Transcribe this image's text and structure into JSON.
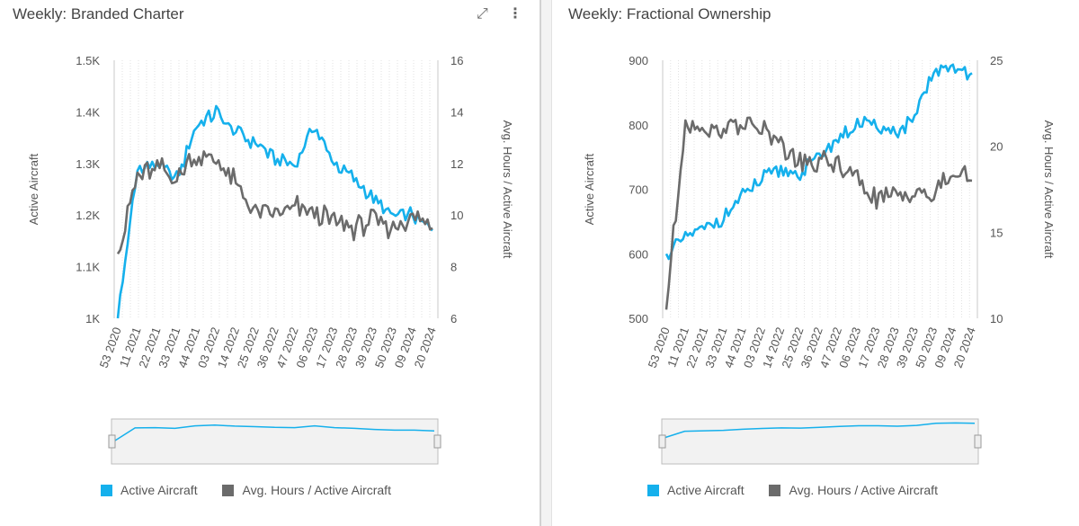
{
  "toolbar": {
    "expand_icon": "expand-arrows-icon",
    "menu_icon": "vertical-dots-icon"
  },
  "colors": {
    "active_aircraft": "#15b0ec",
    "avg_hours": "#6b6b6b"
  },
  "chart_data": [
    {
      "type": "line",
      "title": "Weekly: Branded Charter",
      "xlabel": "",
      "ylabel": "Active Aircraft",
      "y2label": "Avg. Hours / Active Aircraft",
      "ylim": [
        1000,
        1500
      ],
      "y2lim": [
        6,
        16
      ],
      "yticks": [
        "1K",
        "1.1K",
        "1.2K",
        "1.3K",
        "1.4K",
        "1.5K"
      ],
      "y2ticks": [
        "6",
        "8",
        "10",
        "12",
        "14",
        "16"
      ],
      "categories": [
        "53 2020",
        "11 2021",
        "22 2021",
        "33 2021",
        "44 2021",
        "03 2022",
        "14 2022",
        "25 2022",
        "36 2022",
        "47 2022",
        "06 2023",
        "17 2023",
        "28 2023",
        "39 2023",
        "50 2023",
        "09 2024",
        "20 2024"
      ],
      "grid": true,
      "legend": "bottom",
      "series": [
        {
          "name": "Active Aircraft",
          "axis": "left",
          "values": [
            1000,
            1290,
            1300,
            1270,
            1370,
            1400,
            1360,
            1340,
            1310,
            1300,
            1370,
            1300,
            1270,
            1230,
            1200,
            1200,
            1170
          ]
        },
        {
          "name": "Avg. Hours / Active Aircraft",
          "axis": "right",
          "values": [
            8.5,
            11.5,
            11.8,
            11.5,
            12.3,
            12.2,
            11.2,
            10.0,
            10.0,
            10.3,
            10.0,
            9.7,
            9.5,
            9.8,
            9.5,
            10.0,
            9.5
          ]
        }
      ]
    },
    {
      "type": "line",
      "title": "Weekly: Fractional Ownership",
      "xlabel": "",
      "ylabel": "Active Aircraft",
      "y2label": "Avg. Hours / Active Aircraft",
      "ylim": [
        500,
        900
      ],
      "y2lim": [
        10,
        25
      ],
      "yticks": [
        "500",
        "600",
        "700",
        "800",
        "900"
      ],
      "y2ticks": [
        "10",
        "15",
        "20",
        "25"
      ],
      "categories": [
        "53 2020",
        "11 2021",
        "22 2021",
        "33 2021",
        "44 2021",
        "03 2022",
        "14 2022",
        "25 2022",
        "36 2022",
        "47 2022",
        "06 2023",
        "17 2023",
        "28 2023",
        "39 2023",
        "50 2023",
        "09 2024",
        "20 2024"
      ],
      "grid": true,
      "legend": "bottom",
      "series": [
        {
          "name": "Active Aircraft",
          "axis": "left",
          "values": [
            600,
            625,
            640,
            655,
            690,
            715,
            730,
            725,
            750,
            780,
            800,
            800,
            785,
            810,
            880,
            890,
            880
          ]
        },
        {
          "name": "Avg. Hours / Active Aircraft",
          "axis": "right",
          "values": [
            10.5,
            21.5,
            21.0,
            21.0,
            21.5,
            21.0,
            20.0,
            19.0,
            19.0,
            19.0,
            18.0,
            17.0,
            17.0,
            17.5,
            17.0,
            18.5,
            18.0
          ]
        }
      ]
    }
  ]
}
